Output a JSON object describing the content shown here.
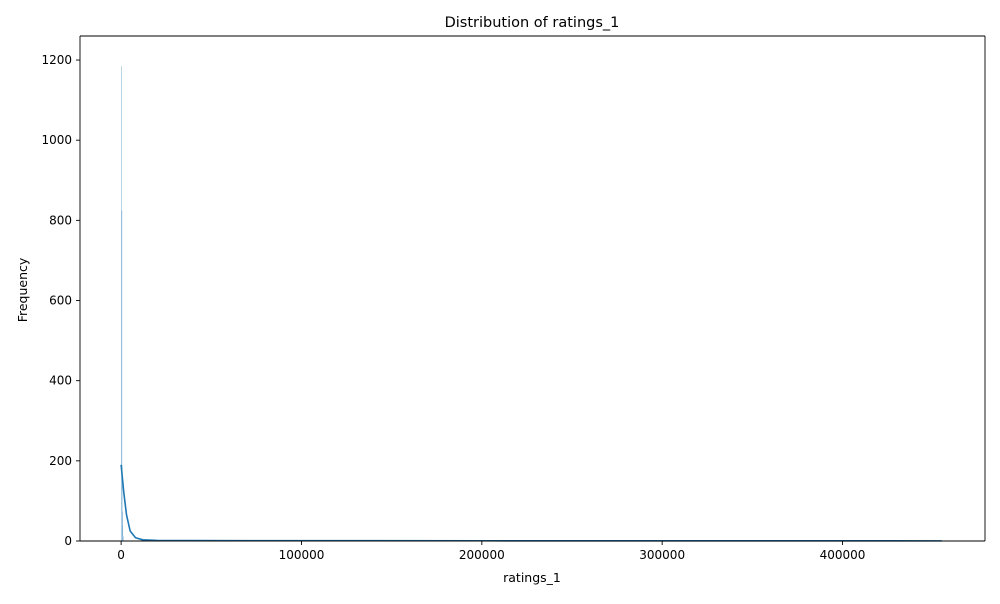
{
  "chart_data": {
    "type": "bar",
    "title": "Distribution of ratings_1",
    "xlabel": "ratings_1",
    "ylabel": "Frequency",
    "xlim": [
      -22800,
      479000
    ],
    "ylim": [
      0,
      1260
    ],
    "xticks": [
      0,
      100000,
      200000,
      300000,
      400000
    ],
    "yticks": [
      0,
      200,
      400,
      600,
      800,
      1000,
      1200
    ],
    "grid": false,
    "legend": "none",
    "bar_color": "#1f77b4",
    "line_color": "#1f77b4",
    "histogram": {
      "bin_edges": [
        0,
        150,
        300,
        450,
        600,
        900,
        1200
      ],
      "counts": [
        1185,
        825,
        190,
        75,
        40,
        12
      ]
    },
    "kde": {
      "x": [
        0,
        1500,
        3000,
        5000,
        8000,
        12000,
        20000,
        40000,
        100000,
        200000,
        300000,
        400000,
        455000
      ],
      "y": [
        190,
        120,
        65,
        25,
        8,
        3,
        1.5,
        1,
        0.8,
        0.6,
        0.5,
        0.4,
        0.3
      ]
    }
  }
}
